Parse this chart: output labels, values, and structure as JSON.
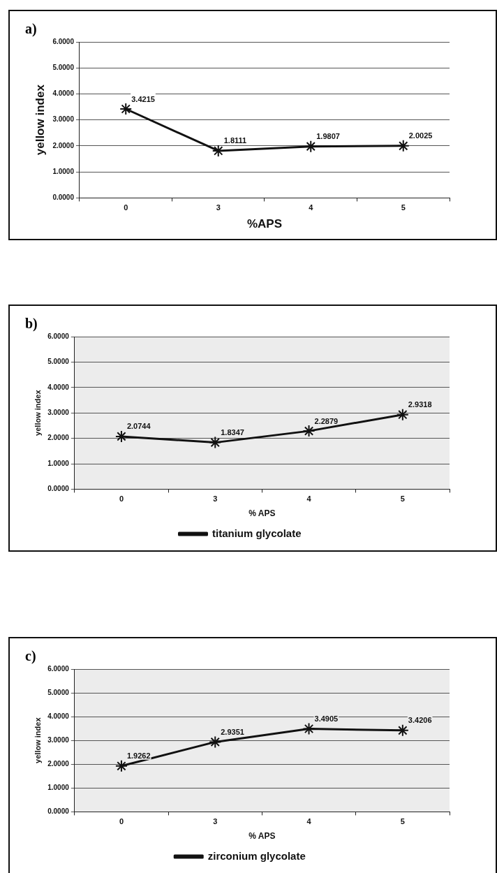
{
  "chart_data": [
    {
      "type": "line",
      "title": "a)",
      "xlabel": "%APS",
      "ylabel": "yellow index",
      "categories": [
        "0",
        "3",
        "4",
        "5"
      ],
      "series": [
        {
          "color": "#111111",
          "values": [
            3.4215,
            1.8111,
            1.9807,
            2.0025
          ]
        }
      ],
      "ylim": [
        0,
        6
      ],
      "yticks": [
        {
          "value": 0,
          "label": "0.0000"
        },
        {
          "value": 1,
          "label": "1.0000"
        },
        {
          "value": 2,
          "label": "2.0000"
        },
        {
          "value": 3,
          "label": "3.0000"
        },
        {
          "value": 4,
          "label": "4.0000"
        },
        {
          "value": 5,
          "label": "5.0000"
        },
        {
          "value": 6,
          "label": "6.0000"
        }
      ],
      "grid": "y",
      "legend": false,
      "marker": "cross",
      "line_style": "solid",
      "data_labels": true
    },
    {
      "type": "line",
      "title": "b)",
      "xlabel": "% APS",
      "ylabel": "yellow index",
      "categories": [
        "0",
        "3",
        "4",
        "5"
      ],
      "series": [
        {
          "name": "titanium glycolate",
          "color": "#111111",
          "values": [
            2.0744,
            1.8347,
            2.2879,
            2.9318
          ]
        }
      ],
      "ylim": [
        0,
        6
      ],
      "yticks": [
        {
          "value": 0,
          "label": "0.0000"
        },
        {
          "value": 1,
          "label": "1.0000"
        },
        {
          "value": 2,
          "label": "2.0000"
        },
        {
          "value": 3,
          "label": "3.0000"
        },
        {
          "value": 4,
          "label": "4.0000"
        },
        {
          "value": 5,
          "label": "5.0000"
        },
        {
          "value": 6,
          "label": "6.0000"
        }
      ],
      "grid": "y",
      "legend": "bottom",
      "marker": "cross",
      "line_style": "solid",
      "data_labels": true
    },
    {
      "type": "line",
      "title": "c)",
      "xlabel": "% APS",
      "ylabel": "yellow index",
      "categories": [
        "0",
        "3",
        "4",
        "5"
      ],
      "series": [
        {
          "name": "zirconium glycolate",
          "color": "#111111",
          "values": [
            1.9262,
            2.9351,
            3.4905,
            3.4206
          ]
        }
      ],
      "ylim": [
        0,
        6
      ],
      "yticks": [
        {
          "value": 0,
          "label": "0.0000"
        },
        {
          "value": 1,
          "label": "1.0000"
        },
        {
          "value": 2,
          "label": "2.0000"
        },
        {
          "value": 3,
          "label": "3.0000"
        },
        {
          "value": 4,
          "label": "4.0000"
        },
        {
          "value": 5,
          "label": "5.0000"
        },
        {
          "value": 6,
          "label": "6.0000"
        }
      ],
      "grid": "y",
      "legend": "bottom",
      "marker": "cross",
      "line_style": "solid",
      "data_labels": true
    }
  ]
}
